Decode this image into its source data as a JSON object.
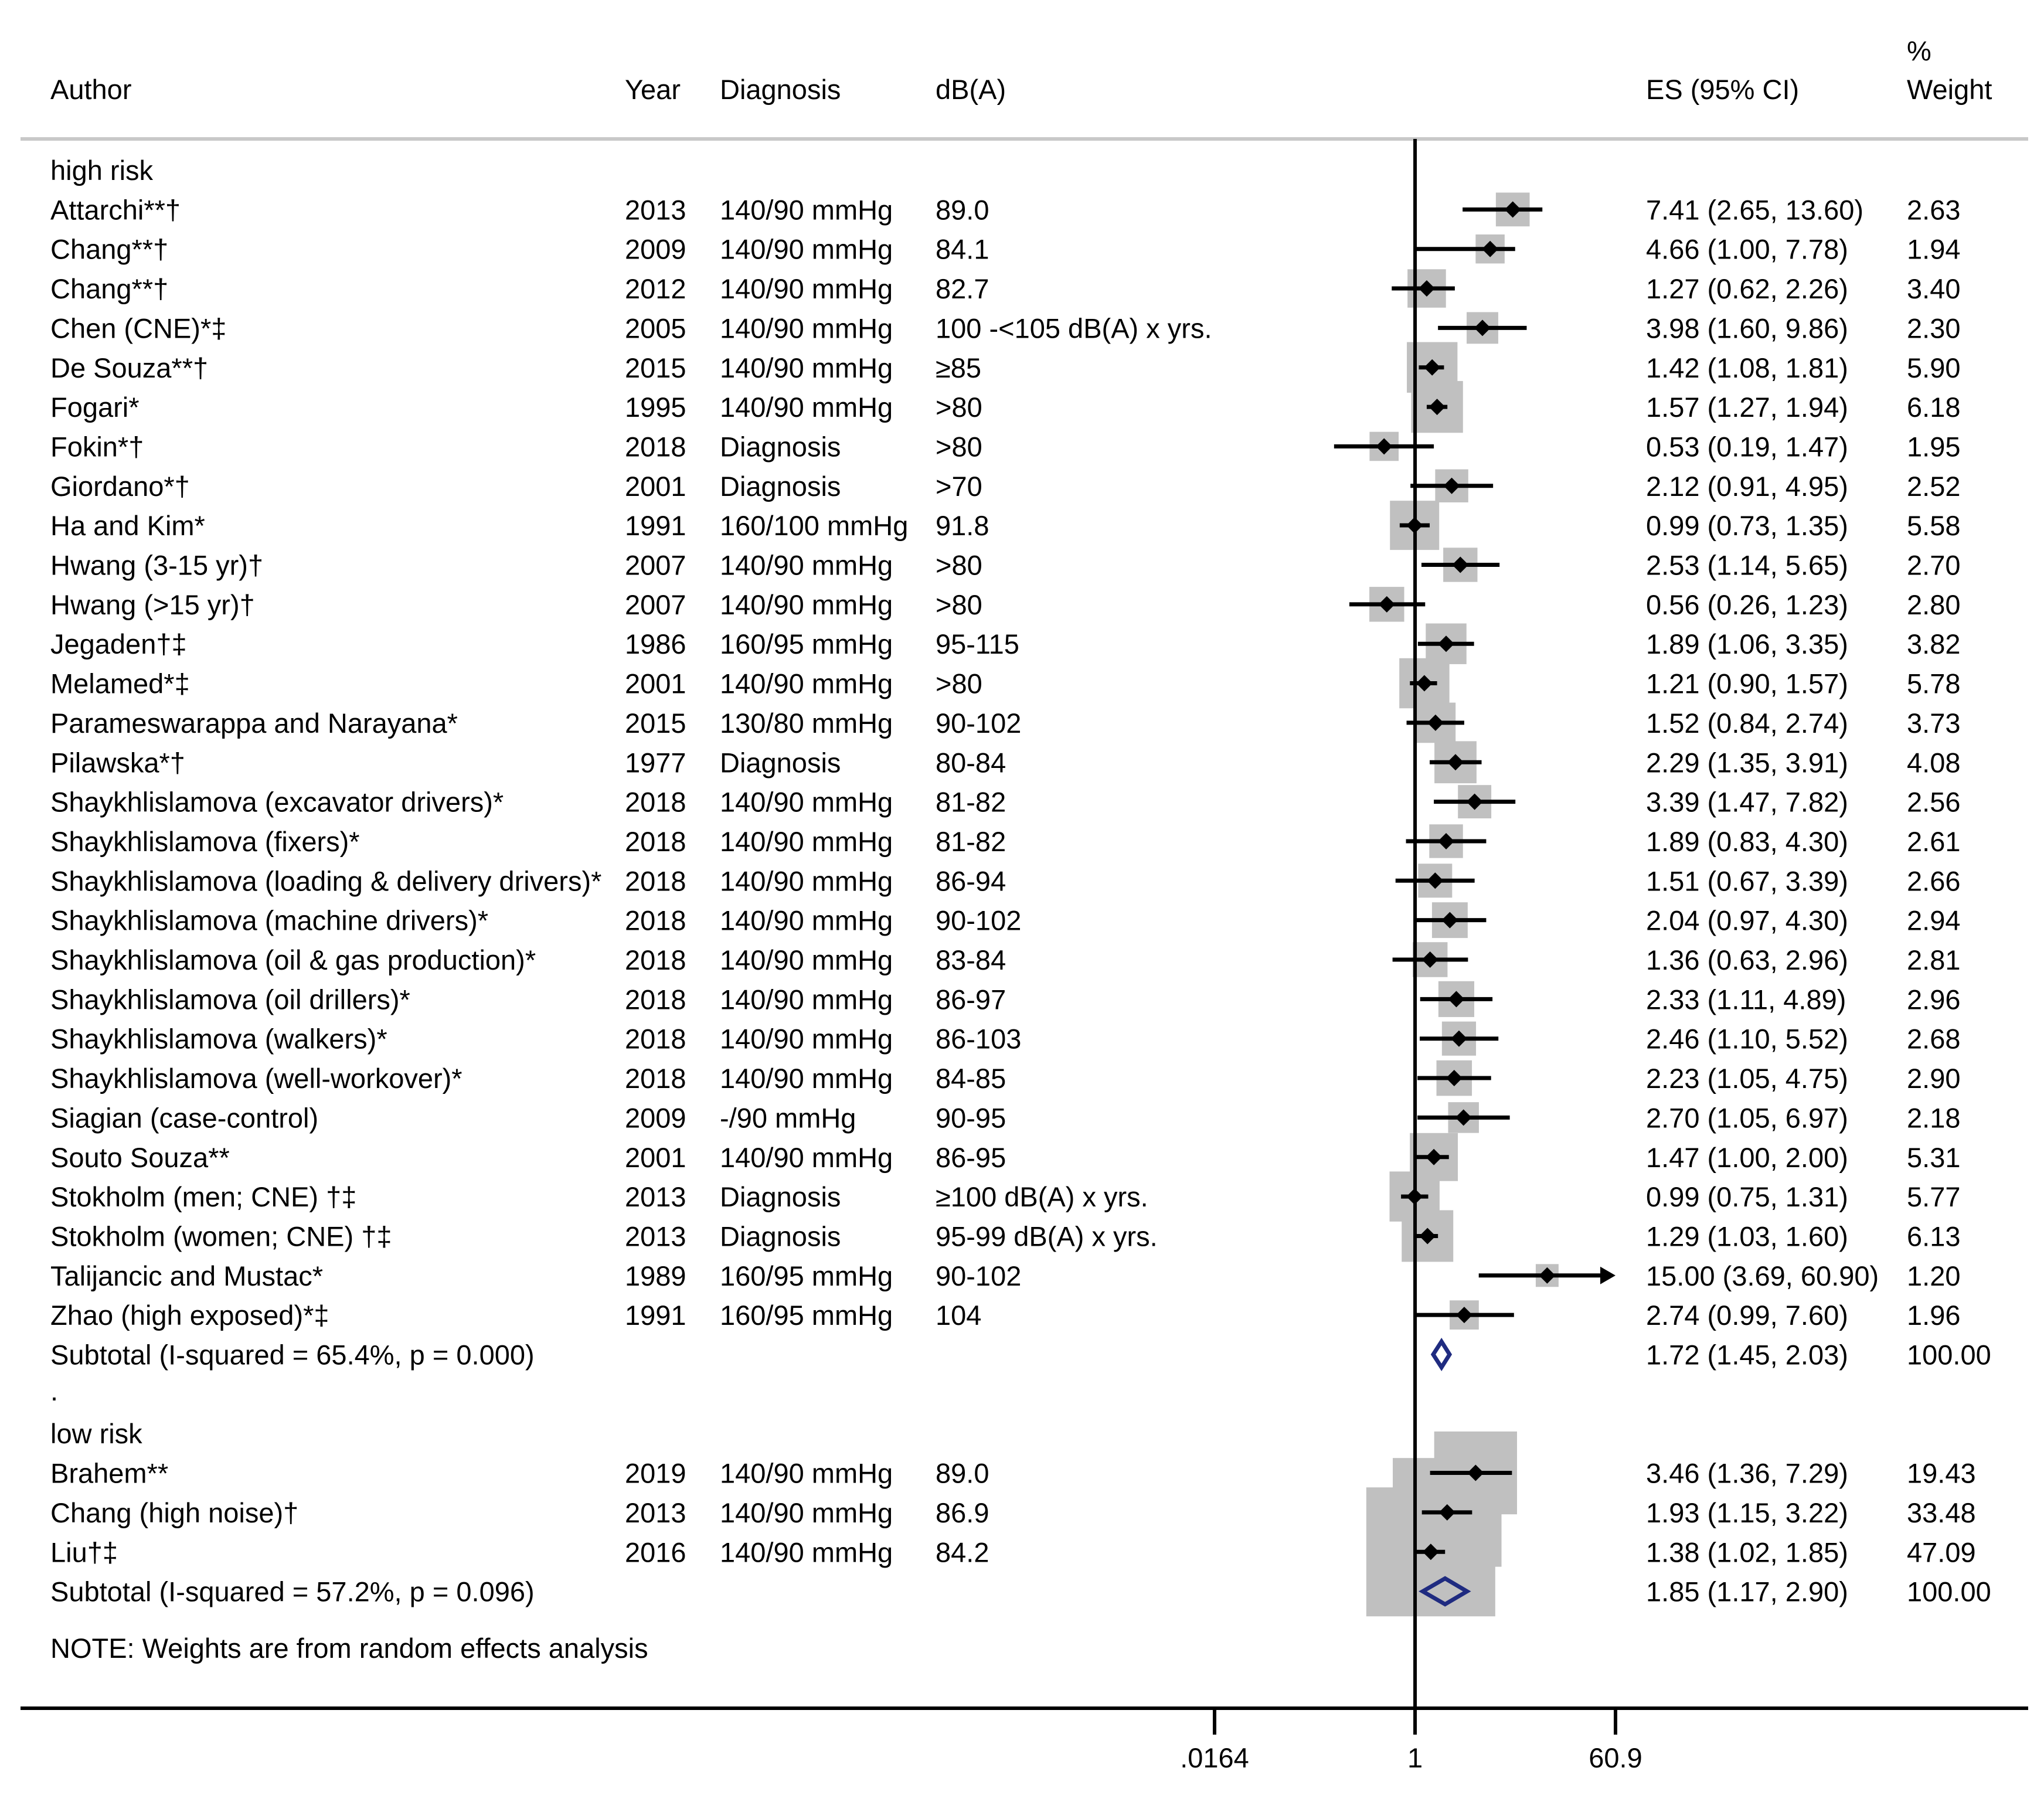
{
  "chart_data": {
    "type": "forest",
    "scale": "log",
    "xlim": [
      0.0164,
      60.9
    ],
    "null_value": 1,
    "headers": {
      "author": "Author",
      "year": "Year",
      "diagnosis": "Diagnosis",
      "db": "dB(A)",
      "es": "ES (95% CI)",
      "weight_line1": "%",
      "weight_line2": "Weight"
    },
    "ticks": [
      {
        "value": 0.0164,
        "label": ".0164"
      },
      {
        "value": 1,
        "label": "1"
      },
      {
        "value": 60.9,
        "label": "60.9"
      }
    ],
    "note": "NOTE: Weights are from random effects analysis",
    "separator": ".",
    "colors": {
      "box": "#c0c0c0",
      "diamond": "#1f2b80",
      "line": "#000000",
      "rule": "#c8c8c8"
    },
    "groups": [
      {
        "label": "high risk",
        "studies": [
          {
            "author": "Attarchi**†",
            "year": "2013",
            "diagnosis": "140/90 mmHg",
            "db": "89.0",
            "es": 7.41,
            "lo": 2.65,
            "hi": 13.6,
            "es_text": "7.41 (2.65, 13.60)",
            "weight": 2.63,
            "weight_text": "2.63"
          },
          {
            "author": "Chang**†",
            "year": "2009",
            "diagnosis": "140/90 mmHg",
            "db": "84.1",
            "es": 4.66,
            "lo": 1.0,
            "hi": 7.78,
            "es_text": "4.66 (1.00, 7.78)",
            "weight": 1.94,
            "weight_text": "1.94"
          },
          {
            "author": "Chang**†",
            "year": "2012",
            "diagnosis": "140/90 mmHg",
            "db": "82.7",
            "es": 1.27,
            "lo": 0.62,
            "hi": 2.26,
            "es_text": "1.27 (0.62, 2.26)",
            "weight": 3.4,
            "weight_text": "3.40"
          },
          {
            "author": "Chen (CNE)*‡",
            "year": "2005",
            "diagnosis": "140/90 mmHg",
            "db": "100 -<105 dB(A) x yrs.",
            "es": 3.98,
            "lo": 1.6,
            "hi": 9.86,
            "es_text": "3.98 (1.60, 9.86)",
            "weight": 2.3,
            "weight_text": "2.30"
          },
          {
            "author": "De Souza**†",
            "year": "2015",
            "diagnosis": "140/90 mmHg",
            "db": "≥85",
            "es": 1.42,
            "lo": 1.08,
            "hi": 1.81,
            "es_text": "1.42 (1.08, 1.81)",
            "weight": 5.9,
            "weight_text": "5.90"
          },
          {
            "author": "Fogari*",
            "year": "1995",
            "diagnosis": "140/90 mmHg",
            "db": ">80",
            "es": 1.57,
            "lo": 1.27,
            "hi": 1.94,
            "es_text": "1.57 (1.27, 1.94)",
            "weight": 6.18,
            "weight_text": "6.18"
          },
          {
            "author": "Fokin*†",
            "year": "2018",
            "diagnosis": "Diagnosis",
            "db": ">80",
            "es": 0.53,
            "lo": 0.19,
            "hi": 1.47,
            "es_text": "0.53 (0.19, 1.47)",
            "weight": 1.95,
            "weight_text": "1.95"
          },
          {
            "author": "Giordano*†",
            "year": "2001",
            "diagnosis": "Diagnosis",
            "db": ">70",
            "es": 2.12,
            "lo": 0.91,
            "hi": 4.95,
            "es_text": "2.12 (0.91, 4.95)",
            "weight": 2.52,
            "weight_text": "2.52"
          },
          {
            "author": "Ha and Kim*",
            "year": "1991",
            "diagnosis": "160/100 mmHg",
            "db": "91.8",
            "es": 0.99,
            "lo": 0.73,
            "hi": 1.35,
            "es_text": "0.99 (0.73, 1.35)",
            "weight": 5.58,
            "weight_text": "5.58"
          },
          {
            "author": "Hwang (3-15 yr)†",
            "year": "2007",
            "diagnosis": "140/90 mmHg",
            "db": ">80",
            "es": 2.53,
            "lo": 1.14,
            "hi": 5.65,
            "es_text": "2.53 (1.14, 5.65)",
            "weight": 2.7,
            "weight_text": "2.70"
          },
          {
            "author": "Hwang (>15 yr)†",
            "year": "2007",
            "diagnosis": "140/90 mmHg",
            "db": ">80",
            "es": 0.56,
            "lo": 0.26,
            "hi": 1.23,
            "es_text": "0.56 (0.26, 1.23)",
            "weight": 2.8,
            "weight_text": "2.80"
          },
          {
            "author": "Jegaden†‡",
            "year": "1986",
            "diagnosis": "160/95 mmHg",
            "db": "95-115",
            "es": 1.89,
            "lo": 1.06,
            "hi": 3.35,
            "es_text": "1.89 (1.06, 3.35)",
            "weight": 3.82,
            "weight_text": "3.82"
          },
          {
            "author": "Melamed*‡",
            "year": "2001",
            "diagnosis": "140/90 mmHg",
            "db": ">80",
            "es": 1.21,
            "lo": 0.9,
            "hi": 1.57,
            "es_text": "1.21 (0.90, 1.57)",
            "weight": 5.78,
            "weight_text": "5.78"
          },
          {
            "author": "Parameswarappa and Narayana*",
            "year": "2015",
            "diagnosis": "130/80 mmHg",
            "db": "90-102",
            "es": 1.52,
            "lo": 0.84,
            "hi": 2.74,
            "es_text": "1.52 (0.84, 2.74)",
            "weight": 3.73,
            "weight_text": "3.73"
          },
          {
            "author": "Pilawska*†",
            "year": "1977",
            "diagnosis": "Diagnosis",
            "db": "80-84",
            "es": 2.29,
            "lo": 1.35,
            "hi": 3.91,
            "es_text": "2.29 (1.35, 3.91)",
            "weight": 4.08,
            "weight_text": "4.08"
          },
          {
            "author": "Shaykhlislamova (excavator drivers)*",
            "year": "2018",
            "diagnosis": "140/90 mmHg",
            "db": "81-82",
            "es": 3.39,
            "lo": 1.47,
            "hi": 7.82,
            "es_text": "3.39 (1.47, 7.82)",
            "weight": 2.56,
            "weight_text": "2.56"
          },
          {
            "author": "Shaykhlislamova (fixers)*",
            "year": "2018",
            "diagnosis": "140/90 mmHg",
            "db": "81-82",
            "es": 1.89,
            "lo": 0.83,
            "hi": 4.3,
            "es_text": "1.89 (0.83, 4.30)",
            "weight": 2.61,
            "weight_text": "2.61"
          },
          {
            "author": "Shaykhlislamova (loading & delivery drivers)*",
            "year": "2018",
            "diagnosis": "140/90 mmHg",
            "db": "86-94",
            "es": 1.51,
            "lo": 0.67,
            "hi": 3.39,
            "es_text": "1.51 (0.67, 3.39)",
            "weight": 2.66,
            "weight_text": "2.66"
          },
          {
            "author": "Shaykhlislamova (machine drivers)*",
            "year": "2018",
            "diagnosis": "140/90 mmHg",
            "db": "90-102",
            "es": 2.04,
            "lo": 0.97,
            "hi": 4.3,
            "es_text": "2.04 (0.97, 4.30)",
            "weight": 2.94,
            "weight_text": "2.94"
          },
          {
            "author": "Shaykhlislamova (oil & gas production)*",
            "year": "2018",
            "diagnosis": "140/90 mmHg",
            "db": "83-84",
            "es": 1.36,
            "lo": 0.63,
            "hi": 2.96,
            "es_text": "1.36 (0.63, 2.96)",
            "weight": 2.81,
            "weight_text": "2.81"
          },
          {
            "author": "Shaykhlislamova (oil drillers)*",
            "year": "2018",
            "diagnosis": "140/90 mmHg",
            "db": "86-97",
            "es": 2.33,
            "lo": 1.11,
            "hi": 4.89,
            "es_text": "2.33 (1.11, 4.89)",
            "weight": 2.96,
            "weight_text": "2.96"
          },
          {
            "author": "Shaykhlislamova (walkers)*",
            "year": "2018",
            "diagnosis": "140/90 mmHg",
            "db": "86-103",
            "es": 2.46,
            "lo": 1.1,
            "hi": 5.52,
            "es_text": "2.46 (1.10, 5.52)",
            "weight": 2.68,
            "weight_text": "2.68"
          },
          {
            "author": "Shaykhlislamova (well-workover)*",
            "year": "2018",
            "diagnosis": "140/90 mmHg",
            "db": "84-85",
            "es": 2.23,
            "lo": 1.05,
            "hi": 4.75,
            "es_text": "2.23 (1.05, 4.75)",
            "weight": 2.9,
            "weight_text": "2.90"
          },
          {
            "author": "Siagian (case-control)",
            "year": "2009",
            "diagnosis": "-/90 mmHg",
            "db": "90-95",
            "es": 2.7,
            "lo": 1.05,
            "hi": 6.97,
            "es_text": "2.70 (1.05, 6.97)",
            "weight": 2.18,
            "weight_text": "2.18"
          },
          {
            "author": "Souto Souza**",
            "year": "2001",
            "diagnosis": "140/90 mmHg",
            "db": "86-95",
            "es": 1.47,
            "lo": 1.0,
            "hi": 2.0,
            "es_text": "1.47 (1.00, 2.00)",
            "weight": 5.31,
            "weight_text": "5.31"
          },
          {
            "author": "Stokholm (men; CNE) †‡",
            "year": "2013",
            "diagnosis": "Diagnosis",
            "db": "≥100  dB(A) x yrs.",
            "es": 0.99,
            "lo": 0.75,
            "hi": 1.31,
            "es_text": "0.99 (0.75, 1.31)",
            "weight": 5.77,
            "weight_text": "5.77"
          },
          {
            "author": "Stokholm (women; CNE) †‡",
            "year": "2013",
            "diagnosis": "Diagnosis",
            "db": "95-99  dB(A) x yrs.",
            "es": 1.29,
            "lo": 1.03,
            "hi": 1.6,
            "es_text": "1.29 (1.03, 1.60)",
            "weight": 6.13,
            "weight_text": "6.13"
          },
          {
            "author": "Talijancic and Mustac*",
            "year": "1989",
            "diagnosis": "160/95 mmHg",
            "db": "90-102",
            "es": 15.0,
            "lo": 3.69,
            "hi": 60.9,
            "es_text": "15.00 (3.69, 60.90)",
            "weight": 1.2,
            "weight_text": "1.20",
            "arrow": true
          },
          {
            "author": "Zhao (high exposed)*‡",
            "year": "1991",
            "diagnosis": "160/95 mmHg",
            "db": "104",
            "es": 2.74,
            "lo": 0.99,
            "hi": 7.6,
            "es_text": "2.74 (0.99, 7.60)",
            "weight": 1.96,
            "weight_text": "1.96"
          }
        ],
        "subtotal": {
          "label": "Subtotal  (I-squared = 65.4%, p = 0.000)",
          "es": 1.72,
          "lo": 1.45,
          "hi": 2.03,
          "es_text": "1.72 (1.45, 2.03)",
          "weight_text": "100.00"
        }
      },
      {
        "label": "low risk",
        "studies": [
          {
            "author": "Brahem**",
            "year": "2019",
            "diagnosis": "140/90 mmHg",
            "db": "89.0",
            "es": 3.46,
            "lo": 1.36,
            "hi": 7.29,
            "es_text": "3.46 (1.36, 7.29)",
            "weight": 19.43,
            "weight_text": "19.43"
          },
          {
            "author": "Chang (high noise)†",
            "year": "2013",
            "diagnosis": "140/90 mmHg",
            "db": "86.9",
            "es": 1.93,
            "lo": 1.15,
            "hi": 3.22,
            "es_text": "1.93 (1.15, 3.22)",
            "weight": 33.48,
            "weight_text": "33.48"
          },
          {
            "author": "Liu†‡",
            "year": "2016",
            "diagnosis": "140/90 mmHg",
            "db": "84.2",
            "es": 1.38,
            "lo": 1.02,
            "hi": 1.85,
            "es_text": "1.38 (1.02, 1.85)",
            "weight": 47.09,
            "weight_text": "47.09"
          }
        ],
        "subtotal": {
          "label": "Subtotal  (I-squared = 57.2%, p = 0.096)",
          "es": 1.85,
          "lo": 1.17,
          "hi": 2.9,
          "es_text": "1.85 (1.17, 2.90)",
          "weight_text": "100.00"
        }
      }
    ]
  }
}
